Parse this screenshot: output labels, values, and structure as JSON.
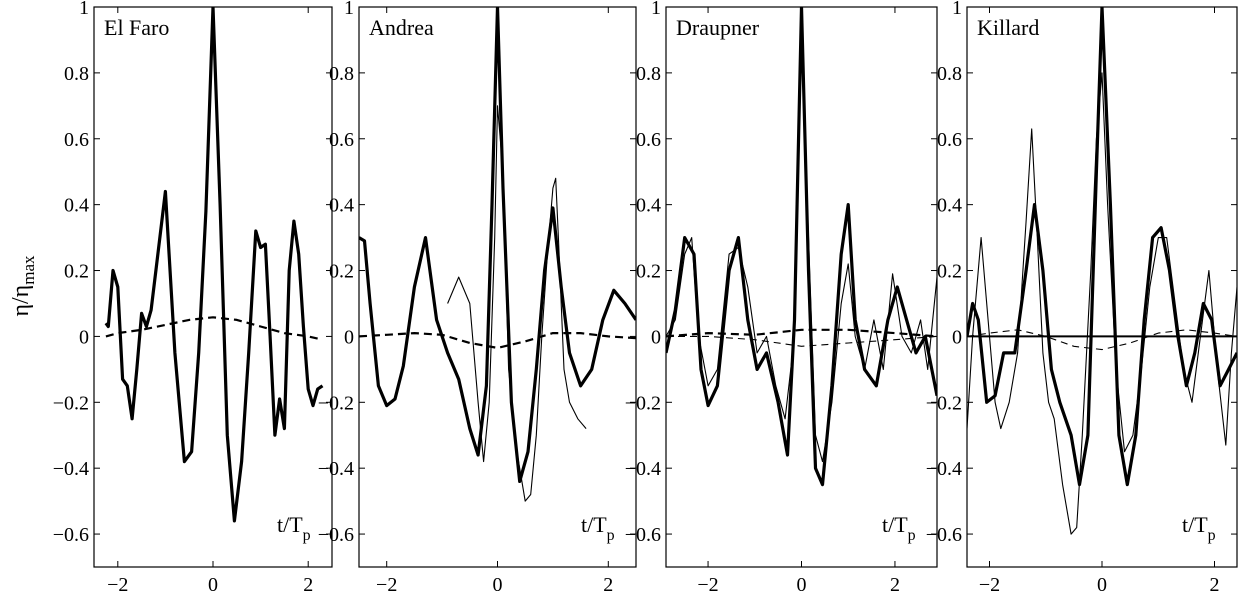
{
  "figure": {
    "ylabel": "η/η",
    "ylabel_sub": "max"
  },
  "chart_data": [
    {
      "type": "line",
      "title": "El Faro",
      "xlabel": "t/T",
      "xlabel_sub": "p",
      "xlim": [
        -2.5,
        2.5
      ],
      "ylim": [
        -0.7,
        1
      ],
      "xticks": [
        -2,
        0,
        2
      ],
      "yticks": [
        -0.6,
        -0.4,
        -0.2,
        0,
        0.2,
        0.4,
        0.6,
        0.8,
        1
      ],
      "ytick_labels": [
        "−0.6",
        "−0.4",
        "−0.2",
        "0",
        "0.2",
        "0.4",
        "0.6",
        "0.8",
        "1"
      ],
      "xtick_labels": [
        "−2",
        "0",
        "2"
      ],
      "grid": false,
      "series": [
        {
          "style": "thick",
          "x": [
            -2.25,
            -2.2,
            -2.1,
            -2.0,
            -1.9,
            -1.8,
            -1.7,
            -1.6,
            -1.5,
            -1.4,
            -1.3,
            -1.2,
            -1.0,
            -0.8,
            -0.6,
            -0.45,
            -0.3,
            -0.15,
            0.0,
            0.15,
            0.3,
            0.45,
            0.6,
            0.75,
            0.9,
            1.0,
            1.1,
            1.2,
            1.3,
            1.4,
            1.5,
            1.6,
            1.7,
            1.8,
            1.9,
            2.0,
            2.1,
            2.2,
            2.3
          ],
          "y": [
            0.04,
            0.03,
            0.2,
            0.15,
            -0.13,
            -0.15,
            -0.25,
            -0.1,
            0.07,
            0.03,
            0.08,
            0.2,
            0.44,
            -0.05,
            -0.38,
            -0.35,
            -0.05,
            0.38,
            1.0,
            0.4,
            -0.3,
            -0.56,
            -0.38,
            -0.05,
            0.32,
            0.27,
            0.28,
            0.0,
            -0.3,
            -0.19,
            -0.28,
            0.2,
            0.35,
            0.25,
            0.03,
            -0.16,
            -0.21,
            -0.16,
            -0.15
          ]
        },
        {
          "style": "dashed",
          "x": [
            -2.25,
            -2.0,
            -1.5,
            -1.0,
            -0.5,
            0.0,
            0.5,
            1.0,
            1.5,
            2.0,
            2.3
          ],
          "y": [
            0.0,
            0.01,
            0.02,
            0.035,
            0.05,
            0.058,
            0.05,
            0.03,
            0.01,
            0.0,
            -0.01
          ]
        }
      ]
    },
    {
      "type": "line",
      "title": "Andrea",
      "xlabel": "t/T",
      "xlabel_sub": "p",
      "xlim": [
        -2.5,
        2.5
      ],
      "ylim": [
        -0.7,
        1
      ],
      "xticks": [
        -2,
        0,
        2
      ],
      "yticks": [
        -0.6,
        -0.4,
        -0.2,
        0,
        0.2,
        0.4,
        0.6,
        0.8,
        1
      ],
      "ytick_labels": [
        "−0.6",
        "−0.4",
        "−0.2",
        "0",
        "0.2",
        "0.4",
        "0.6",
        "0.8",
        "1"
      ],
      "xtick_labels": [
        "−2",
        "0",
        "2"
      ],
      "grid": false,
      "series": [
        {
          "style": "thick",
          "x": [
            -2.5,
            -2.4,
            -2.3,
            -2.15,
            -2.0,
            -1.85,
            -1.7,
            -1.5,
            -1.3,
            -1.1,
            -0.9,
            -0.7,
            -0.5,
            -0.35,
            -0.2,
            -0.1,
            0.0,
            0.1,
            0.25,
            0.4,
            0.55,
            0.7,
            0.85,
            1.0,
            1.15,
            1.3,
            1.5,
            1.7,
            1.9,
            2.1,
            2.3,
            2.5
          ],
          "y": [
            0.3,
            0.29,
            0.1,
            -0.15,
            -0.21,
            -0.19,
            -0.09,
            0.15,
            0.3,
            0.05,
            -0.05,
            -0.13,
            -0.28,
            -0.36,
            -0.15,
            0.4,
            1.0,
            0.45,
            -0.2,
            -0.44,
            -0.35,
            -0.1,
            0.2,
            0.39,
            0.15,
            -0.05,
            -0.15,
            -0.1,
            0.05,
            0.14,
            0.1,
            0.05
          ]
        },
        {
          "style": "thin",
          "x": [
            -0.9,
            -0.7,
            -0.5,
            -0.35,
            -0.25,
            -0.15,
            -0.05,
            0.0,
            0.1,
            0.2,
            0.35,
            0.5,
            0.6,
            0.7,
            0.8,
            0.9,
            1.0,
            1.05,
            1.1,
            1.2,
            1.3,
            1.45,
            1.6
          ],
          "y": [
            0.1,
            0.18,
            0.1,
            -0.2,
            -0.38,
            -0.2,
            0.3,
            0.7,
            0.5,
            -0.1,
            -0.35,
            -0.5,
            -0.48,
            -0.3,
            0.0,
            0.25,
            0.45,
            0.48,
            0.3,
            -0.1,
            -0.2,
            -0.25,
            -0.28
          ]
        },
        {
          "style": "dashed",
          "x": [
            -2.5,
            -2.0,
            -1.5,
            -1.0,
            -0.5,
            0.0,
            0.5,
            1.0,
            1.5,
            2.0,
            2.5
          ],
          "y": [
            0.0,
            0.005,
            0.01,
            0.005,
            -0.02,
            -0.035,
            -0.015,
            0.01,
            0.01,
            0.0,
            -0.005
          ]
        }
      ]
    },
    {
      "type": "line",
      "title": "Draupner",
      "xlabel": "t/T",
      "xlabel_sub": "p",
      "xlim": [
        -2.9,
        2.9
      ],
      "ylim": [
        -0.7,
        1
      ],
      "xticks": [
        -2,
        0,
        2
      ],
      "yticks": [
        -0.6,
        -0.4,
        -0.2,
        0,
        0.2,
        0.4,
        0.6,
        0.8,
        1
      ],
      "ytick_labels": [
        "−0.6",
        "−0.4",
        "−0.2",
        "0",
        "0.2",
        "0.4",
        "0.6",
        "0.8",
        "1"
      ],
      "xtick_labels": [
        "−2",
        "0",
        "2"
      ],
      "grid": false,
      "series": [
        {
          "style": "thick",
          "x": [
            -2.9,
            -2.7,
            -2.5,
            -2.3,
            -2.15,
            -2.0,
            -1.8,
            -1.55,
            -1.35,
            -1.15,
            -0.95,
            -0.75,
            -0.5,
            -0.3,
            -0.15,
            0.0,
            0.15,
            0.3,
            0.45,
            0.65,
            0.85,
            1.0,
            1.15,
            1.35,
            1.6,
            1.85,
            2.05,
            2.25,
            2.45,
            2.65,
            2.9
          ],
          "y": [
            -0.05,
            0.08,
            0.3,
            0.25,
            -0.1,
            -0.21,
            -0.15,
            0.2,
            0.3,
            0.05,
            -0.1,
            -0.05,
            -0.2,
            -0.36,
            0.05,
            1.0,
            0.2,
            -0.4,
            -0.45,
            -0.15,
            0.25,
            0.4,
            0.05,
            -0.1,
            -0.15,
            0.05,
            0.15,
            0.05,
            -0.05,
            0.0,
            -0.18
          ]
        },
        {
          "style": "thin",
          "x": [
            -2.9,
            -2.7,
            -2.5,
            -2.35,
            -2.2,
            -2.0,
            -1.8,
            -1.55,
            -1.35,
            -1.15,
            -0.95,
            -0.75,
            -0.55,
            -0.35,
            -0.15,
            0.0,
            0.15,
            0.3,
            0.45,
            0.65,
            0.85,
            1.0,
            1.15,
            1.35,
            1.55,
            1.75,
            1.95,
            2.15,
            2.35,
            2.55,
            2.7,
            2.9
          ],
          "y": [
            0.0,
            0.05,
            0.25,
            0.3,
            0.0,
            -0.15,
            -0.1,
            0.25,
            0.27,
            0.15,
            -0.05,
            0.0,
            -0.15,
            -0.25,
            0.0,
            0.9,
            0.3,
            -0.3,
            -0.38,
            -0.2,
            0.1,
            0.22,
            0.0,
            -0.1,
            0.05,
            -0.1,
            0.19,
            0.0,
            -0.05,
            0.05,
            -0.1,
            0.18
          ]
        },
        {
          "style": "dashed",
          "x": [
            -2.9,
            -2.0,
            -1.0,
            0.0,
            1.0,
            2.0,
            2.9
          ],
          "y": [
            0.0,
            0.01,
            0.005,
            0.02,
            0.02,
            0.01,
            0.0
          ]
        },
        {
          "style": "thin-dashed",
          "x": [
            -2.9,
            -2.0,
            -1.0,
            0.0,
            1.0,
            2.0,
            2.9
          ],
          "y": [
            0.0,
            0.0,
            -0.01,
            -0.03,
            -0.02,
            -0.01,
            0.0
          ]
        }
      ]
    },
    {
      "type": "line",
      "title": "Killard",
      "xlabel": "t/T",
      "xlabel_sub": "p",
      "xlim": [
        -2.4,
        2.4
      ],
      "ylim": [
        -0.7,
        1
      ],
      "xticks": [
        -2,
        0,
        2
      ],
      "yticks": [
        -0.6,
        -0.4,
        -0.2,
        0,
        0.2,
        0.4,
        0.6,
        0.8,
        1
      ],
      "ytick_labels": [
        "−0.6",
        "−0.4",
        "−0.2",
        "0",
        "0.2",
        "0.4",
        "0.6",
        "0.8",
        "1"
      ],
      "xtick_labels": [
        "−2",
        "0",
        "2"
      ],
      "grid": false,
      "series": [
        {
          "style": "thick",
          "x": [
            -2.4,
            -2.3,
            -2.2,
            -2.05,
            -1.9,
            -1.75,
            -1.55,
            -1.35,
            -1.2,
            -1.05,
            -0.9,
            -0.75,
            -0.55,
            -0.4,
            -0.25,
            -0.1,
            0.0,
            0.15,
            0.3,
            0.45,
            0.6,
            0.75,
            0.9,
            1.05,
            1.2,
            1.35,
            1.5,
            1.65,
            1.8,
            1.95,
            2.1,
            2.25,
            2.4
          ],
          "y": [
            0.0,
            0.1,
            0.05,
            -0.2,
            -0.18,
            -0.05,
            -0.05,
            0.2,
            0.4,
            0.2,
            -0.1,
            -0.2,
            -0.3,
            -0.45,
            -0.3,
            0.5,
            1.0,
            0.4,
            -0.3,
            -0.45,
            -0.3,
            0.05,
            0.3,
            0.33,
            0.2,
            0.0,
            -0.15,
            -0.05,
            0.1,
            0.05,
            -0.15,
            -0.1,
            -0.05
          ]
        },
        {
          "style": "thin",
          "x": [
            -2.4,
            -2.3,
            -2.15,
            -2.0,
            -1.9,
            -1.8,
            -1.65,
            -1.5,
            -1.35,
            -1.25,
            -1.15,
            -1.05,
            -0.95,
            -0.85,
            -0.7,
            -0.55,
            -0.45,
            -0.35,
            -0.2,
            -0.1,
            0.0,
            0.1,
            0.25,
            0.4,
            0.55,
            0.7,
            0.85,
            1.0,
            1.15,
            1.3,
            1.45,
            1.6,
            1.75,
            1.9,
            2.05,
            2.2,
            2.3,
            2.4
          ],
          "y": [
            -0.28,
            0.0,
            0.3,
            0.0,
            -0.2,
            -0.28,
            -0.2,
            -0.05,
            0.35,
            0.63,
            0.3,
            -0.05,
            -0.2,
            -0.25,
            -0.45,
            -0.6,
            -0.58,
            -0.3,
            0.2,
            0.6,
            0.8,
            0.4,
            -0.1,
            -0.35,
            -0.3,
            -0.1,
            0.15,
            0.3,
            0.3,
            0.1,
            -0.1,
            -0.2,
            0.0,
            0.2,
            -0.1,
            -0.33,
            -0.05,
            0.15
          ]
        },
        {
          "style": "solid",
          "x": [
            -2.4,
            -1.2,
            0.0,
            1.2,
            2.4
          ],
          "y": [
            0.0,
            0.0,
            0.0,
            0.0,
            0.0
          ]
        },
        {
          "style": "thin-dashed",
          "x": [
            -2.4,
            -2.0,
            -1.5,
            -1.0,
            -0.5,
            0.0,
            0.5,
            1.0,
            1.5,
            2.0,
            2.4
          ],
          "y": [
            0.0,
            0.01,
            0.02,
            0.0,
            -0.03,
            -0.04,
            -0.02,
            0.01,
            0.02,
            0.01,
            0.0
          ]
        }
      ]
    }
  ]
}
